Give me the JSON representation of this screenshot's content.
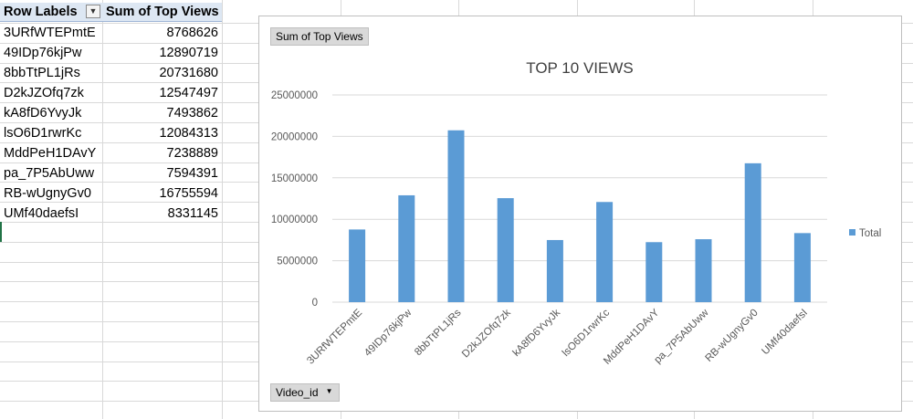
{
  "pivot": {
    "header_labels": "Row Labels",
    "header_values": "Sum of Top Views",
    "rows": [
      {
        "label": "3URfWTEPmtE",
        "value": "8768626"
      },
      {
        "label": "49IDp76kjPw",
        "value": "12890719"
      },
      {
        "label": "8bbTtPL1jRs",
        "value": "20731680"
      },
      {
        "label": "D2kJZOfq7zk",
        "value": "12547497"
      },
      {
        "label": "kA8fD6YvyJk",
        "value": "7493862"
      },
      {
        "label": "lsO6D1rwrKc",
        "value": "12084313"
      },
      {
        "label": "MddPeH1DAvY",
        "value": "7238889"
      },
      {
        "label": "pa_7P5AbUww",
        "value": "7594391"
      },
      {
        "label": "RB-wUgnyGv0",
        "value": "16755594"
      },
      {
        "label": "UMf40daefsI",
        "value": "8331145"
      }
    ]
  },
  "chart_buttons": {
    "value_field": "Sum of Top Views",
    "axis_field": "Video_id"
  },
  "chart_data": {
    "type": "bar",
    "title": "TOP 10 VIEWS",
    "categories": [
      "3URfWTEPmtE",
      "49IDp76kjPw",
      "8bbTtPL1jRs",
      "D2kJZOfq7zk",
      "kA8fD6YvyJk",
      "lsO6D1rwrKc",
      "MddPeH1DAvY",
      "pa_7P5AbUww",
      "RB-wUgnyGv0",
      "UMf40daefsI"
    ],
    "series": [
      {
        "name": "Total",
        "values": [
          8768626,
          12890719,
          20731680,
          12547497,
          7493862,
          12084313,
          7238889,
          7594391,
          16755594,
          8331145
        ],
        "color": "#5b9bd5"
      }
    ],
    "ylim": [
      0,
      25000000
    ],
    "yticks": [
      "0",
      "5000000",
      "10000000",
      "15000000",
      "20000000",
      "25000000"
    ],
    "grid": true,
    "legend": "right"
  },
  "colors": {
    "bar": "#5b9bd5",
    "header_bg": "#dde7f3",
    "gridline": "#d9d9d9"
  }
}
